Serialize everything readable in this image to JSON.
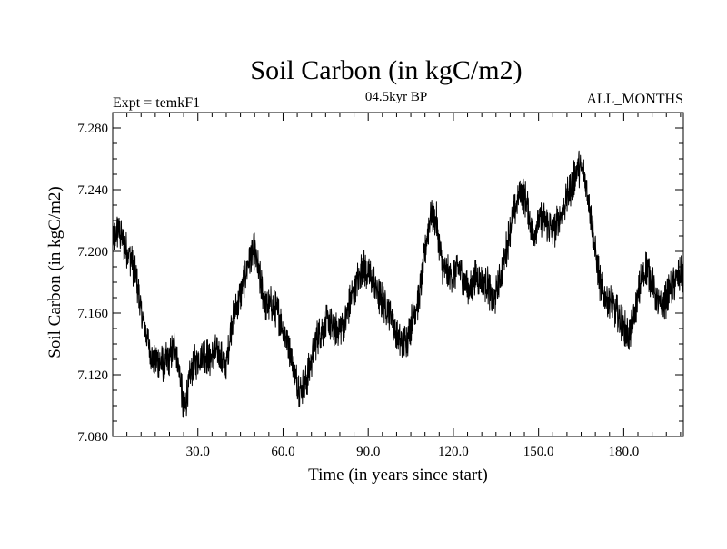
{
  "chart_data": {
    "type": "line",
    "title": "Soil Carbon (in kgC/m2)",
    "subtitle": "04.5kyr BP",
    "left_label": "Expt = temkF1",
    "right_label": "ALL_MONTHS",
    "xlabel": "Time (in years since start)",
    "ylabel": "Soil Carbon (in kgC/m2)",
    "xlim": [
      0,
      201
    ],
    "ylim": [
      7.08,
      7.29
    ],
    "x_ticks": [
      30,
      60,
      90,
      120,
      150,
      180
    ],
    "x_tick_labels": [
      "30.0",
      "60.0",
      "90.0",
      "120.0",
      "150.0",
      "180.0"
    ],
    "y_ticks": [
      7.08,
      7.12,
      7.16,
      7.2,
      7.24,
      7.28
    ],
    "y_tick_labels": [
      "7.080",
      "7.120",
      "7.160",
      "7.200",
      "7.240",
      "7.280"
    ],
    "grid": false,
    "line_color": "#000000",
    "series": [
      {
        "name": "Soil Carbon",
        "x": [
          0,
          2,
          4,
          6,
          8,
          9,
          10,
          12,
          14,
          16,
          18,
          20,
          22,
          24,
          25,
          26,
          28,
          30,
          32,
          34,
          36,
          38,
          40,
          42,
          44,
          46,
          48,
          50,
          52,
          54,
          56,
          58,
          60,
          62,
          64,
          66,
          68,
          70,
          72,
          74,
          76,
          78,
          80,
          82,
          84,
          86,
          88,
          90,
          92,
          94,
          96,
          98,
          100,
          102,
          104,
          106,
          108,
          110,
          112,
          114,
          116,
          118,
          120,
          122,
          124,
          126,
          128,
          130,
          132,
          134,
          136,
          138,
          140,
          142,
          144,
          146,
          148,
          150,
          152,
          154,
          156,
          158,
          160,
          162,
          164,
          166,
          168,
          170,
          172,
          174,
          176,
          178,
          180,
          182,
          184,
          186,
          188,
          190,
          192,
          194,
          196,
          198,
          200,
          201
        ],
        "y": [
          7.205,
          7.215,
          7.205,
          7.198,
          7.185,
          7.175,
          7.16,
          7.145,
          7.13,
          7.128,
          7.127,
          7.13,
          7.14,
          7.115,
          7.095,
          7.105,
          7.125,
          7.13,
          7.135,
          7.13,
          7.135,
          7.132,
          7.125,
          7.155,
          7.165,
          7.18,
          7.195,
          7.2,
          7.18,
          7.165,
          7.165,
          7.16,
          7.15,
          7.14,
          7.12,
          7.11,
          7.115,
          7.13,
          7.145,
          7.15,
          7.155,
          7.148,
          7.15,
          7.155,
          7.17,
          7.18,
          7.19,
          7.185,
          7.18,
          7.17,
          7.165,
          7.16,
          7.145,
          7.14,
          7.145,
          7.16,
          7.17,
          7.2,
          7.225,
          7.22,
          7.19,
          7.185,
          7.185,
          7.19,
          7.18,
          7.175,
          7.185,
          7.18,
          7.18,
          7.165,
          7.18,
          7.195,
          7.215,
          7.23,
          7.24,
          7.23,
          7.21,
          7.22,
          7.22,
          7.215,
          7.215,
          7.225,
          7.235,
          7.245,
          7.255,
          7.25,
          7.23,
          7.2,
          7.175,
          7.17,
          7.165,
          7.158,
          7.15,
          7.145,
          7.16,
          7.18,
          7.19,
          7.18,
          7.165,
          7.165,
          7.175,
          7.18,
          7.185,
          7.185
        ]
      }
    ]
  }
}
